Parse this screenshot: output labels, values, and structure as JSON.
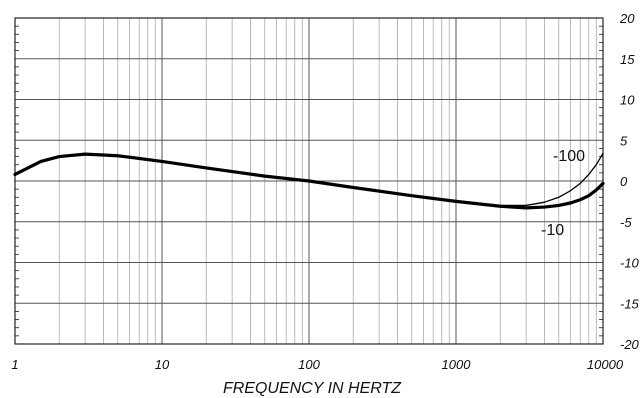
{
  "chart_data": {
    "type": "line",
    "xscale": "log",
    "xlim": [
      1,
      10000
    ],
    "ylim": [
      -20,
      20
    ],
    "xlabel": "FREQUENCY IN HERTZ",
    "ylabel": "",
    "title": "",
    "grid": true,
    "x_ticks": [
      {
        "value": 1,
        "label": "1"
      },
      {
        "value": 10,
        "label": "10"
      },
      {
        "value": 100,
        "label": "100"
      },
      {
        "value": 1000,
        "label": "1000"
      },
      {
        "value": 10000,
        "label": "10000"
      }
    ],
    "y_ticks": [
      {
        "value": 20,
        "label": "20"
      },
      {
        "value": 15,
        "label": "15"
      },
      {
        "value": 10,
        "label": "10"
      },
      {
        "value": 5,
        "label": "5"
      },
      {
        "value": 0,
        "label": "0"
      },
      {
        "value": -5,
        "label": "-5"
      },
      {
        "value": -10,
        "label": "-10"
      },
      {
        "value": -15,
        "label": "-15"
      },
      {
        "value": -20,
        "label": "-20"
      }
    ],
    "series": [
      {
        "name": "-100",
        "color": "#000000",
        "points": [
          [
            1,
            0.8
          ],
          [
            1.5,
            2.4
          ],
          [
            2,
            3.0
          ],
          [
            3,
            3.3
          ],
          [
            5,
            3.1
          ],
          [
            10,
            2.4
          ],
          [
            20,
            1.6
          ],
          [
            50,
            0.6
          ],
          [
            100,
            0.0
          ],
          [
            200,
            -0.8
          ],
          [
            500,
            -1.8
          ],
          [
            1000,
            -2.5
          ],
          [
            2000,
            -3.0
          ],
          [
            3000,
            -3.0
          ],
          [
            4000,
            -2.6
          ],
          [
            5000,
            -2.0
          ],
          [
            6000,
            -1.2
          ],
          [
            7000,
            -0.3
          ],
          [
            8000,
            0.8
          ],
          [
            9000,
            2.0
          ],
          [
            10000,
            3.4
          ]
        ]
      },
      {
        "name": "-10",
        "color": "#000000",
        "points": [
          [
            1,
            0.8
          ],
          [
            1.5,
            2.4
          ],
          [
            2,
            3.0
          ],
          [
            3,
            3.3
          ],
          [
            5,
            3.1
          ],
          [
            10,
            2.4
          ],
          [
            20,
            1.6
          ],
          [
            50,
            0.6
          ],
          [
            100,
            0.0
          ],
          [
            200,
            -0.8
          ],
          [
            500,
            -1.8
          ],
          [
            1000,
            -2.5
          ],
          [
            2000,
            -3.1
          ],
          [
            3000,
            -3.3
          ],
          [
            4000,
            -3.2
          ],
          [
            5000,
            -3.0
          ],
          [
            6000,
            -2.7
          ],
          [
            7000,
            -2.3
          ],
          [
            8000,
            -1.8
          ],
          [
            9000,
            -1.1
          ],
          [
            10000,
            -0.3
          ]
        ]
      }
    ]
  }
}
